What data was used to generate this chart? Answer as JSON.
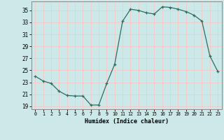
{
  "x": [
    0,
    1,
    2,
    3,
    4,
    5,
    6,
    7,
    8,
    9,
    10,
    11,
    12,
    13,
    14,
    15,
    16,
    17,
    18,
    19,
    20,
    21,
    22,
    23
  ],
  "y": [
    24.0,
    23.2,
    22.8,
    21.5,
    20.8,
    20.7,
    20.7,
    19.2,
    19.2,
    22.8,
    26.0,
    33.2,
    35.2,
    35.0,
    34.6,
    34.4,
    35.6,
    35.5,
    35.2,
    34.8,
    34.2,
    33.2,
    27.4,
    24.8
  ],
  "xlabel": "Humidex (Indice chaleur)",
  "ylim": [
    18.5,
    36.5
  ],
  "xlim": [
    -0.5,
    23.5
  ],
  "yticks": [
    19,
    21,
    23,
    25,
    27,
    29,
    31,
    33,
    35
  ],
  "xticks": [
    0,
    1,
    2,
    3,
    4,
    5,
    6,
    7,
    8,
    9,
    10,
    11,
    12,
    13,
    14,
    15,
    16,
    17,
    18,
    19,
    20,
    21,
    22,
    23
  ],
  "line_color": "#2d6e63",
  "marker": "+",
  "bg_color": "#cce8e8",
  "grid_color": "#f5c8c8",
  "spine_color": "#888888"
}
